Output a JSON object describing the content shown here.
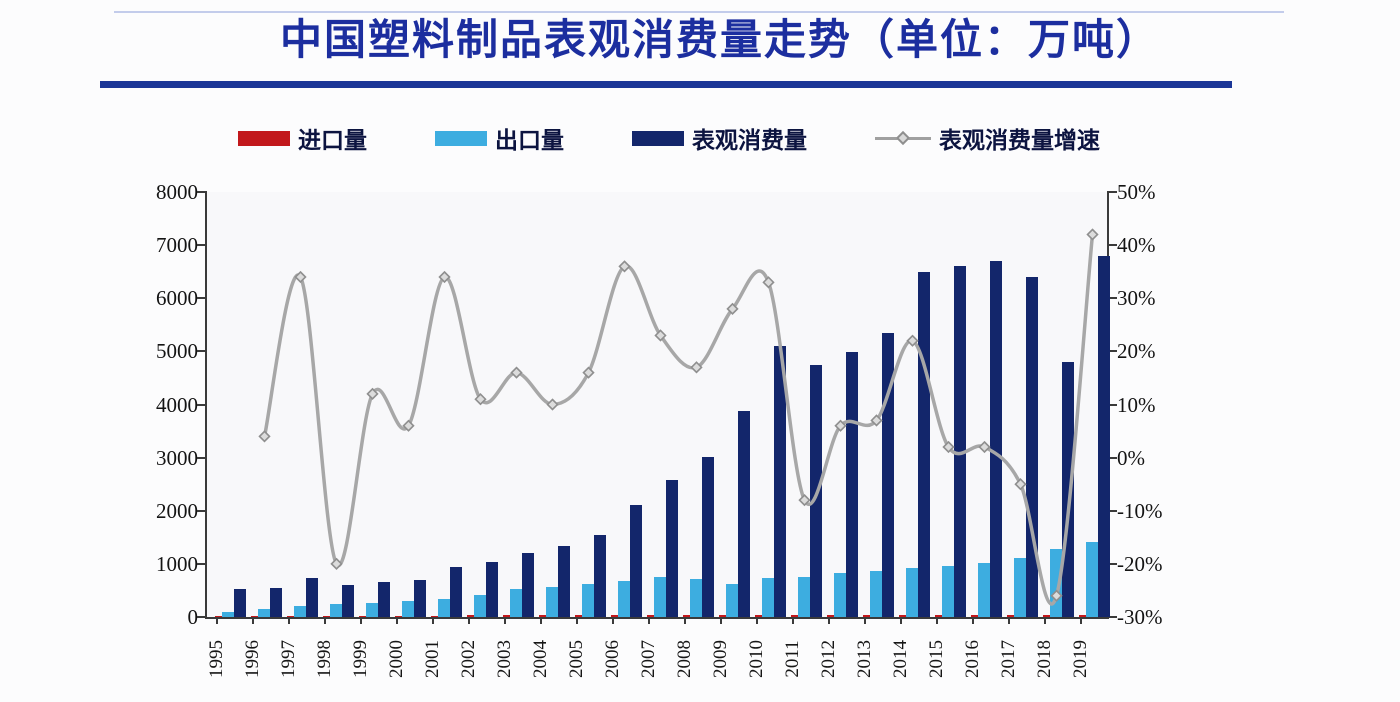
{
  "title": {
    "text": "中国塑料制品表观消费量走势（单位：万吨）"
  },
  "colors": {
    "title_blue": "#1c2e9f",
    "rule_navy": "#1b3697",
    "import_red": "#c2181c",
    "export_lightblue": "#3dade0",
    "consumption_navy": "#13266b",
    "growth_gray": "#a7a7a7",
    "axis_dark": "#3a3a3a"
  },
  "legend": [
    {
      "label": "进口量",
      "swatch": "bar",
      "color": "#c2181c"
    },
    {
      "label": "出口量",
      "swatch": "bar",
      "color": "#3dade0"
    },
    {
      "label": "表观消费量",
      "swatch": "bar",
      "color": "#13266b"
    },
    {
      "label": "表观消费量增速",
      "swatch": "line",
      "color": "#a0a0a0"
    }
  ],
  "chart_data": {
    "type": "bar",
    "subtype": "combo-bar-line",
    "title": "中国塑料制品表观消费量走势（单位：万吨）",
    "categories": [
      "1995",
      "1996",
      "1997",
      "1998",
      "1999",
      "2000",
      "2001",
      "2002",
      "2003",
      "2004",
      "2005",
      "2006",
      "2007",
      "2008",
      "2009",
      "2010",
      "2011",
      "2012",
      "2013",
      "2014",
      "2015",
      "2016",
      "2017",
      "2018",
      "2019"
    ],
    "series": [
      {
        "name": "进口量",
        "type": "bar",
        "axis": "left",
        "color": "#c2181c",
        "values": [
          20,
          22,
          24,
          25,
          26,
          28,
          28,
          30,
          32,
          32,
          34,
          34,
          36,
          36,
          34,
          35,
          35,
          36,
          36,
          38,
          38,
          38,
          36,
          35,
          38
        ]
      },
      {
        "name": "出口量",
        "type": "bar",
        "axis": "left",
        "color": "#3dade0",
        "values": [
          90,
          150,
          200,
          240,
          260,
          300,
          330,
          420,
          520,
          570,
          620,
          680,
          750,
          720,
          630,
          730,
          750,
          820,
          860,
          930,
          960,
          1020,
          1110,
          1280,
          1420
        ]
      },
      {
        "name": "表观消费量",
        "type": "bar",
        "axis": "left",
        "color": "#13266b",
        "values": [
          520,
          540,
          740,
          600,
          660,
          700,
          940,
          1040,
          1200,
          1330,
          1550,
          2100,
          2570,
          3020,
          3870,
          5110,
          4750,
          4980,
          5350,
          6500,
          6600,
          6700,
          6400,
          4800,
          6800
        ]
      },
      {
        "name": "表观消费量增速",
        "type": "line",
        "axis": "right",
        "color": "#a7a7a7",
        "unit": "%",
        "values": [
          null,
          4,
          34,
          -20,
          12,
          6,
          34,
          11,
          16,
          10,
          16,
          36,
          23,
          17,
          28,
          33,
          -8,
          6,
          7,
          22,
          2,
          2,
          -5,
          -26,
          42
        ]
      }
    ],
    "left_axis": {
      "min": 0,
      "max": 8000,
      "ticks": [
        "8000",
        "7000",
        "6000",
        "5000",
        "4000",
        "3000",
        "2000",
        "1000",
        "0"
      ]
    },
    "right_axis": {
      "min": -30,
      "max": 50,
      "ticks": [
        "50%",
        "40%",
        "30%",
        "20%",
        "10%",
        "0%",
        "-10%",
        "-20%",
        "-30%"
      ]
    },
    "grid": false,
    "legend_position": "top"
  }
}
